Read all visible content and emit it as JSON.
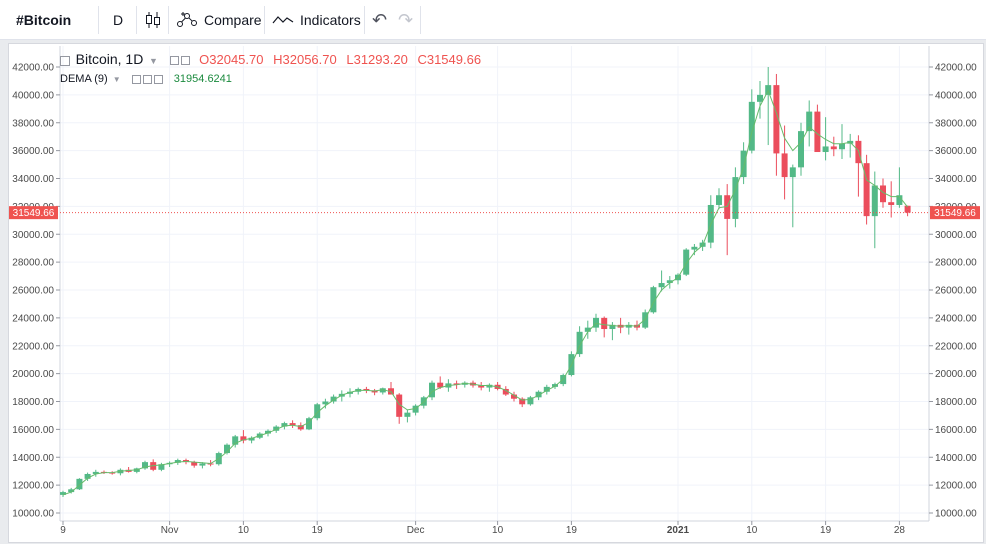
{
  "toolbar": {
    "symbol": "#Bitcoin",
    "interval": "D",
    "compare": "Compare",
    "indicators": "Indicators"
  },
  "legend": {
    "title": "Bitcoin, 1D",
    "o_key": "O",
    "o_val": "32045.70",
    "h_key": "H",
    "h_val": "32056.70",
    "l_key": "L",
    "l_val": "31293.20",
    "c_key": "C",
    "c_val": "31549.66",
    "indicator_name": "DEMA (9)",
    "indicator_value": "31954.6241"
  },
  "colors": {
    "up": "#26a69a",
    "down": "#ef5350",
    "candle_up": "#53b987",
    "candle_down": "#eb4d5c",
    "dema": "#66bb6a",
    "price_line": "#ef5350"
  },
  "chart_data": {
    "type": "candlestick",
    "title": "Bitcoin, 1D",
    "x_tick_labels": [
      "9",
      "Nov",
      "10",
      "19",
      "Dec",
      "10",
      "19",
      "2021",
      "10",
      "19",
      "28"
    ],
    "y_tick_labels": [
      "10000.00",
      "12000.00",
      "14000.00",
      "16000.00",
      "18000.00",
      "20000.00",
      "22000.00",
      "24000.00",
      "26000.00",
      "28000.00",
      "30000.00",
      "32000.00",
      "34000.00",
      "36000.00",
      "38000.00",
      "40000.00",
      "42000.00"
    ],
    "ylim": [
      9500,
      43200
    ],
    "last_price": 31549.66,
    "last_price_label": "31549.66",
    "grid": true,
    "candles": [
      [
        11300,
        11600,
        11150,
        11500
      ],
      [
        11500,
        11800,
        11400,
        11700
      ],
      [
        11700,
        12500,
        11650,
        12450
      ],
      [
        12450,
        12900,
        12300,
        12800
      ],
      [
        12800,
        13100,
        12600,
        12950
      ],
      [
        12950,
        13050,
        12800,
        12900
      ],
      [
        12900,
        13000,
        12750,
        12850
      ],
      [
        12850,
        13200,
        12700,
        13100
      ],
      [
        13100,
        13300,
        12900,
        12950
      ],
      [
        12950,
        13250,
        12850,
        13200
      ],
      [
        13200,
        13750,
        13100,
        13650
      ],
      [
        13650,
        13850,
        13000,
        13100
      ],
      [
        13100,
        13600,
        13000,
        13500
      ],
      [
        13500,
        13700,
        13300,
        13600
      ],
      [
        13600,
        13900,
        13450,
        13800
      ],
      [
        13800,
        13900,
        13500,
        13650
      ],
      [
        13650,
        13750,
        13250,
        13400
      ],
      [
        13400,
        13650,
        13200,
        13550
      ],
      [
        13550,
        13800,
        13350,
        13500
      ],
      [
        13500,
        14400,
        13400,
        14300
      ],
      [
        14300,
        15000,
        14200,
        14900
      ],
      [
        14900,
        15600,
        14700,
        15500
      ],
      [
        15500,
        15950,
        15000,
        15200
      ],
      [
        15200,
        15500,
        15000,
        15400
      ],
      [
        15400,
        15800,
        15300,
        15700
      ],
      [
        15700,
        16000,
        15500,
        15900
      ],
      [
        15900,
        16300,
        15750,
        16200
      ],
      [
        16200,
        16550,
        16000,
        16450
      ],
      [
        16450,
        16650,
        16100,
        16300
      ],
      [
        16300,
        16500,
        15900,
        16000
      ],
      [
        16000,
        16900,
        15950,
        16800
      ],
      [
        16800,
        17900,
        16650,
        17800
      ],
      [
        17800,
        18200,
        17500,
        18000
      ],
      [
        18000,
        18500,
        17850,
        18350
      ],
      [
        18350,
        18800,
        18000,
        18550
      ],
      [
        18550,
        18950,
        18300,
        18700
      ],
      [
        18700,
        19000,
        18500,
        18900
      ],
      [
        18900,
        19050,
        18600,
        18800
      ],
      [
        18800,
        18900,
        18450,
        18650
      ],
      [
        18650,
        19000,
        18500,
        18950
      ],
      [
        18950,
        19400,
        18600,
        18500
      ],
      [
        18500,
        18600,
        16400,
        16900
      ],
      [
        16900,
        17400,
        16500,
        17200
      ],
      [
        17200,
        17800,
        17000,
        17700
      ],
      [
        17700,
        18400,
        17500,
        18300
      ],
      [
        18300,
        19500,
        18100,
        19350
      ],
      [
        19350,
        19800,
        18900,
        19000
      ],
      [
        19000,
        19600,
        18700,
        19300
      ],
      [
        19300,
        19500,
        18900,
        19200
      ],
      [
        19200,
        19450,
        19000,
        19350
      ],
      [
        19350,
        19500,
        19000,
        19150
      ],
      [
        19150,
        19400,
        18800,
        19000
      ],
      [
        19000,
        19300,
        18700,
        19200
      ],
      [
        19200,
        19400,
        18800,
        18900
      ],
      [
        18900,
        19100,
        18400,
        18500
      ],
      [
        18500,
        18700,
        18000,
        18200
      ],
      [
        18200,
        18300,
        17600,
        17800
      ],
      [
        17800,
        18400,
        17700,
        18300
      ],
      [
        18300,
        18800,
        18100,
        18700
      ],
      [
        18700,
        19200,
        18500,
        19050
      ],
      [
        19050,
        19350,
        18900,
        19250
      ],
      [
        19250,
        20000,
        19100,
        19900
      ],
      [
        19900,
        21600,
        19800,
        21400
      ],
      [
        21400,
        23400,
        21200,
        23000
      ],
      [
        23000,
        23800,
        22500,
        23300
      ],
      [
        23300,
        24300,
        23000,
        24000
      ],
      [
        24000,
        24100,
        22600,
        23200
      ],
      [
        23200,
        23700,
        22400,
        23500
      ],
      [
        23500,
        24000,
        22900,
        23300
      ],
      [
        23300,
        23700,
        22800,
        23500
      ],
      [
        23500,
        23800,
        23100,
        23300
      ],
      [
        23300,
        24600,
        23200,
        24400
      ],
      [
        24400,
        26300,
        24300,
        26200
      ],
      [
        26200,
        27400,
        25900,
        26500
      ],
      [
        26500,
        27000,
        26100,
        26700
      ],
      [
        26700,
        27200,
        26400,
        27100
      ],
      [
        27100,
        29000,
        27000,
        28900
      ],
      [
        28900,
        29300,
        28500,
        29100
      ],
      [
        29100,
        29600,
        28800,
        29400
      ],
      [
        29400,
        32800,
        29000,
        32100
      ],
      [
        32100,
        33300,
        31800,
        32800
      ],
      [
        32800,
        33600,
        28500,
        31100
      ],
      [
        31100,
        34800,
        30500,
        34100
      ],
      [
        34100,
        36600,
        33600,
        36000
      ],
      [
        36000,
        40400,
        35800,
        39500
      ],
      [
        39500,
        41000,
        38300,
        40000
      ],
      [
        40000,
        42000,
        36400,
        40700
      ],
      [
        40700,
        41500,
        34200,
        35800
      ],
      [
        35800,
        37800,
        32500,
        34100
      ],
      [
        34100,
        35000,
        30500,
        34800
      ],
      [
        34800,
        38000,
        34200,
        37400
      ],
      [
        37400,
        39600,
        36300,
        38800
      ],
      [
        38800,
        39300,
        36200,
        35900
      ],
      [
        35900,
        38400,
        35300,
        36300
      ],
      [
        36300,
        37000,
        35600,
        36100
      ],
      [
        36100,
        37900,
        35400,
        36500
      ],
      [
        36500,
        37200,
        35500,
        36700
      ],
      [
        36700,
        37100,
        32700,
        35100
      ],
      [
        35100,
        35700,
        30700,
        31300
      ],
      [
        31300,
        34500,
        29000,
        33500
      ],
      [
        33500,
        34000,
        31900,
        32300
      ],
      [
        32300,
        33800,
        31200,
        32100
      ],
      [
        32100,
        34800,
        31900,
        32800
      ],
      [
        32045.7,
        32056.7,
        31293.2,
        31549.66
      ]
    ],
    "dema": [
      11300,
      11500,
      12000,
      12500,
      12800,
      12900,
      12900,
      13000,
      13050,
      13100,
      13300,
      13400,
      13450,
      13550,
      13650,
      13700,
      13650,
      13600,
      13550,
      13900,
      14400,
      15000,
      15250,
      15350,
      15550,
      15750,
      16000,
      16250,
      16300,
      16200,
      16500,
      17200,
      17700,
      18100,
      18450,
      18650,
      18800,
      18800,
      18750,
      18850,
      18700,
      17800,
      17400,
      17500,
      17950,
      18700,
      19000,
      19150,
      19200,
      19300,
      19250,
      19150,
      19150,
      19050,
      18800,
      18450,
      18100,
      18150,
      18450,
      18800,
      19100,
      19600,
      20600,
      22000,
      23000,
      23600,
      23500,
      23450,
      23400,
      23450,
      23400,
      23900,
      25100,
      26000,
      26500,
      26900,
      27900,
      28700,
      29200,
      30700,
      31900,
      32000,
      33200,
      34800,
      37300,
      39200,
      40300,
      38700,
      36900,
      36000,
      36600,
      37700,
      37200,
      36800,
      36500,
      36500,
      36600,
      36000,
      33900,
      33500,
      33000,
      32700,
      32700,
      31950
    ]
  }
}
